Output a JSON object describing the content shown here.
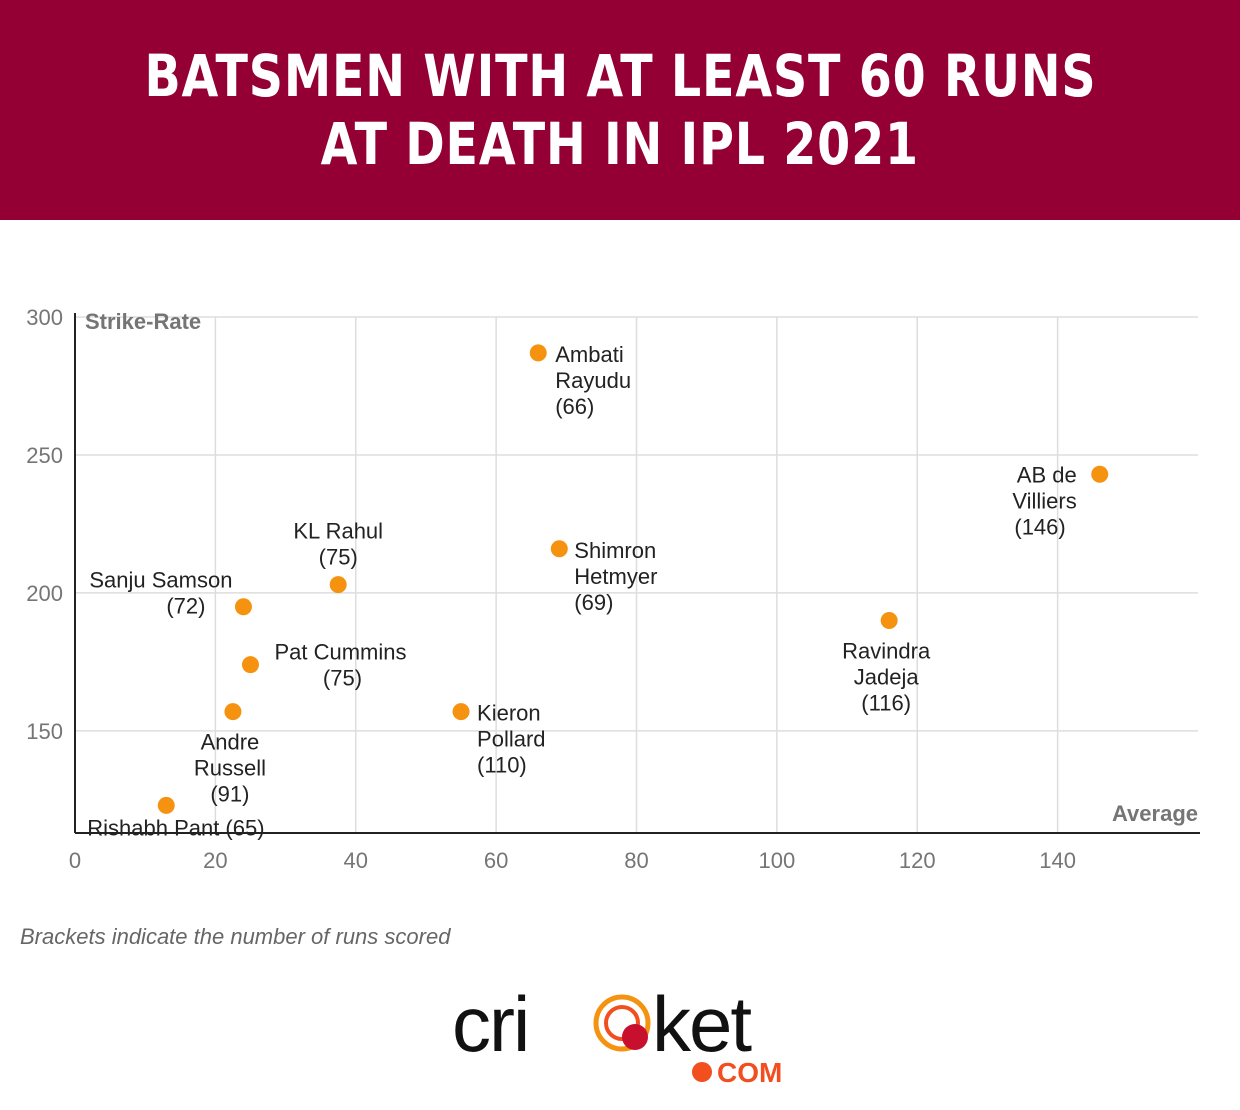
{
  "header": {
    "title_line1": "BATSMEN WITH AT LEAST 60 RUNS",
    "title_line2": "AT DEATH IN IPL 2021",
    "background_color": "#940033"
  },
  "chart_data": {
    "type": "scatter",
    "title": "BATSMEN WITH AT LEAST 60 RUNS AT DEATH IN IPL 2021",
    "xlabel": "Average",
    "ylabel": "Strike-Rate",
    "xlim": [
      0,
      160
    ],
    "ylim": [
      113,
      300
    ],
    "xticks": [
      0,
      20,
      40,
      60,
      80,
      100,
      120,
      140
    ],
    "yticks": [
      150,
      200,
      250,
      300
    ],
    "grid": true,
    "point_color": "#f5920f",
    "points": [
      {
        "name": "Ambati Rayudu",
        "runs": 66,
        "x": 66,
        "y": 287,
        "label_lines": [
          "Ambati",
          "Rayudu",
          "(66)"
        ]
      },
      {
        "name": "AB de Villiers",
        "runs": 146,
        "x": 146,
        "y": 243,
        "label_lines": [
          "AB de",
          "Villiers",
          "(146)"
        ]
      },
      {
        "name": "KL Rahul",
        "runs": 75,
        "x": 37.5,
        "y": 203,
        "label_lines": [
          "KL Rahul",
          "(75)"
        ]
      },
      {
        "name": "Shimron Hetmyer",
        "runs": 69,
        "x": 69,
        "y": 216,
        "label_lines": [
          "Shimron",
          "Hetmyer",
          "(69)"
        ]
      },
      {
        "name": "Sanju Samson",
        "runs": 72,
        "x": 24,
        "y": 195,
        "label_lines": [
          "Sanju Samson",
          "(72)"
        ]
      },
      {
        "name": "Ravindra Jadeja",
        "runs": 116,
        "x": 116,
        "y": 190,
        "label_lines": [
          "Ravindra",
          "Jadeja",
          "(116)"
        ]
      },
      {
        "name": "Pat Cummins",
        "runs": 75,
        "x": 25,
        "y": 174,
        "label_lines": [
          "Pat Cummins",
          "(75)"
        ]
      },
      {
        "name": "Andre Russell",
        "runs": 91,
        "x": 22.5,
        "y": 157,
        "label_lines": [
          "Andre",
          "Russell",
          "(91)"
        ]
      },
      {
        "name": "Kieron Pollard",
        "runs": 110,
        "x": 55,
        "y": 157,
        "label_lines": [
          "Kieron",
          "Pollard",
          "(110)"
        ]
      },
      {
        "name": "Rishabh Pant",
        "runs": 65,
        "x": 13,
        "y": 123,
        "label_lines": [
          "Rishabh Pant (65)"
        ]
      }
    ]
  },
  "footnote": "Brackets indicate the number of runs scored",
  "logo": {
    "text": "cricket",
    "suffix": "COM",
    "accent_color": "#f24e1e"
  }
}
